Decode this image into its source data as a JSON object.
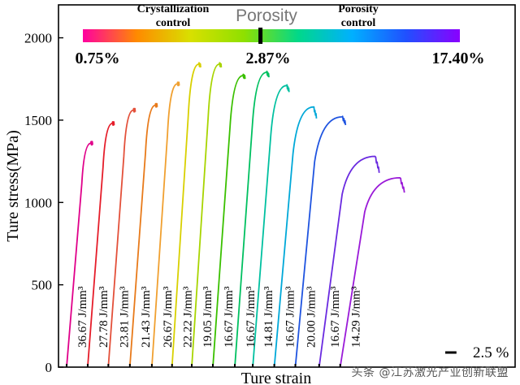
{
  "chart_data": {
    "type": "line",
    "ylabel": "Ture stress(MPa)",
    "xlabel": "Ture strain",
    "ylim": [
      0,
      2200
    ],
    "yticks": [
      0,
      500,
      1000,
      1500,
      2000
    ],
    "x_scale_bar": "2.5 %",
    "x_scale_bar_value": 2.5,
    "colorbar": {
      "title": "Porosity",
      "left_label": "Crystallization\ncontrol",
      "right_label": "Porosity\ncontrol",
      "min_label": "0.75%",
      "mid_label": "2.87%",
      "max_label": "17.40%",
      "min_value": 0.75,
      "mid_value": 2.87,
      "max_value": 17.4,
      "colors": [
        "#ff00a0",
        "#ff8a00",
        "#d8e000",
        "#8ee000",
        "#00d88a",
        "#00b0ff",
        "#2050ff",
        "#8a00ff"
      ]
    },
    "series": [
      {
        "label": "36.67 J/mm³",
        "color": "#e0008a",
        "strain_start_pct": 0.0,
        "strain_span_pct": 5.8,
        "ultimate_stress": 1360,
        "failure_stress": 1360
      },
      {
        "label": "27.78 J/mm³",
        "color": "#e51d2a",
        "strain_start_pct": 4.7,
        "strain_span_pct": 5.9,
        "ultimate_stress": 1480,
        "failure_stress": 1480
      },
      {
        "label": "23.81 J/mm³",
        "color": "#e3503a",
        "strain_start_pct": 9.3,
        "strain_span_pct": 6.0,
        "ultimate_stress": 1560,
        "failure_stress": 1560
      },
      {
        "label": "21.43 J/mm³",
        "color": "#e87a1a",
        "strain_start_pct": 14.1,
        "strain_span_pct": 6.1,
        "ultimate_stress": 1590,
        "failure_stress": 1590
      },
      {
        "label": "26.67 J/mm³",
        "color": "#f0a030",
        "strain_start_pct": 19.0,
        "strain_span_pct": 6.1,
        "ultimate_stress": 1720,
        "failure_stress": 1720
      },
      {
        "label": "22.22 J/mm³",
        "color": "#d8d000",
        "strain_start_pct": 23.5,
        "strain_span_pct": 6.4,
        "ultimate_stress": 1840,
        "failure_stress": 1830
      },
      {
        "label": "19.05 J/mm³",
        "color": "#a8d400",
        "strain_start_pct": 27.9,
        "strain_span_pct": 6.6,
        "ultimate_stress": 1840,
        "failure_stress": 1830
      },
      {
        "label": "16.67 J/mm³",
        "color": "#3ac000",
        "strain_start_pct": 32.6,
        "strain_span_pct": 7.2,
        "ultimate_stress": 1770,
        "failure_stress": 1760
      },
      {
        "label": "16.67 J/mm³",
        "color": "#00c060",
        "strain_start_pct": 37.5,
        "strain_span_pct": 7.6,
        "ultimate_stress": 1790,
        "failure_stress": 1770
      },
      {
        "label": "14.81 J/mm³",
        "color": "#00c0a0",
        "strain_start_pct": 41.5,
        "strain_span_pct": 8.1,
        "ultimate_stress": 1710,
        "failure_stress": 1680
      },
      {
        "label": "16.67 J/mm³",
        "color": "#00a8d8",
        "strain_start_pct": 46.3,
        "strain_span_pct": 9.4,
        "ultimate_stress": 1580,
        "failure_stress": 1520
      },
      {
        "label": "20.00 J/mm³",
        "color": "#1f54e0",
        "strain_start_pct": 51.0,
        "strain_span_pct": 11.2,
        "ultimate_stress": 1520,
        "failure_stress": 1480
      },
      {
        "label": "16.67 J/mm³",
        "color": "#6a2ae0",
        "strain_start_pct": 56.3,
        "strain_span_pct": 13.4,
        "ultimate_stress": 1280,
        "failure_stress": 1190
      },
      {
        "label": "14.29 J/mm³",
        "color": "#9a1ad8",
        "strain_start_pct": 61.0,
        "strain_span_pct": 14.3,
        "ultimate_stress": 1150,
        "failure_stress": 1070
      }
    ]
  },
  "watermark": "头条 @江苏激光产业创新联盟"
}
